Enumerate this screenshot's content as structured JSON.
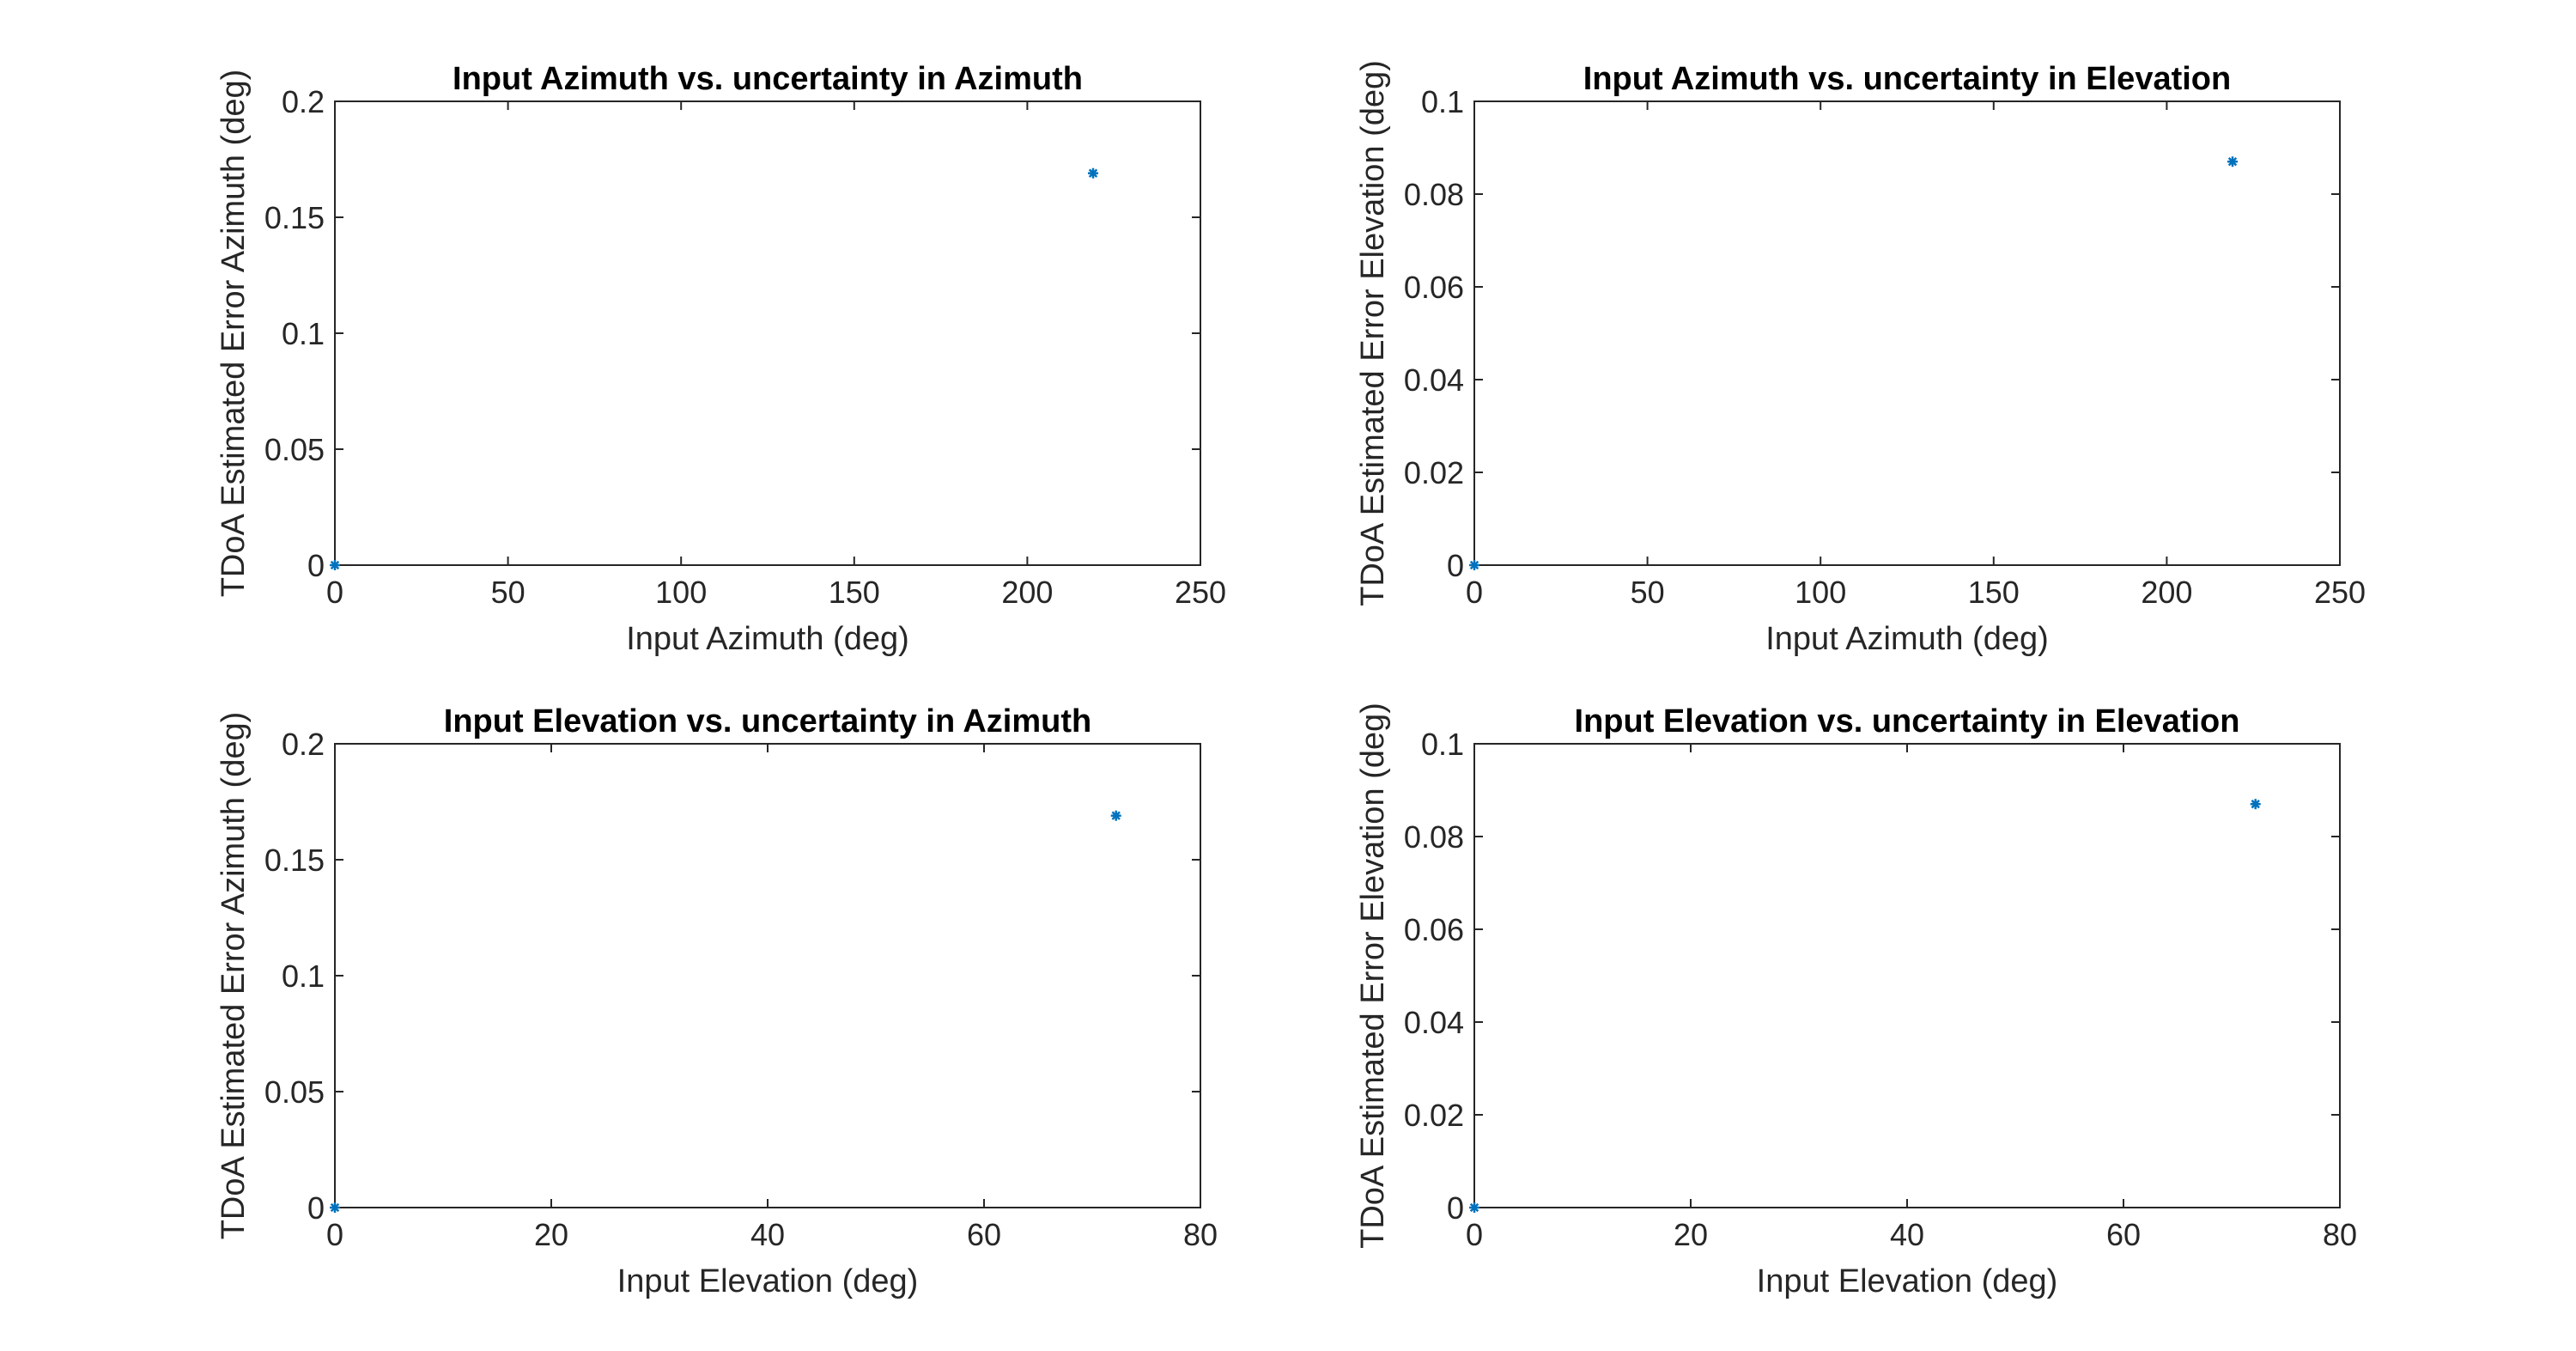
{
  "chart_data": [
    {
      "type": "scatter",
      "title": "Input Azimuth vs. uncertainty in Azimuth",
      "xlabel": "Input Azimuth (deg)",
      "ylabel": "TDoA Estimated Error Azimuth (deg)",
      "xlim": [
        0,
        250
      ],
      "ylim": [
        0,
        0.2
      ],
      "xticks": [
        0,
        50,
        100,
        150,
        200,
        250
      ],
      "yticks": [
        0,
        0.05,
        0.1,
        0.15,
        0.2
      ],
      "xtick_labels": [
        "0",
        "50",
        "100",
        "150",
        "200",
        "250"
      ],
      "ytick_labels": [
        "0",
        "0.05",
        "0.1",
        "0.15",
        "0.2"
      ],
      "grid": false,
      "marker": "asterisk",
      "color": "#0072BD",
      "x": [
        0,
        219
      ],
      "y": [
        0,
        0.169
      ]
    },
    {
      "type": "scatter",
      "title": "Input Azimuth vs. uncertainty in Elevation",
      "xlabel": "Input Azimuth (deg)",
      "ylabel": "TDoA Estimated Error Elevation (deg)",
      "xlim": [
        0,
        250
      ],
      "ylim": [
        0,
        0.1
      ],
      "xticks": [
        0,
        50,
        100,
        150,
        200,
        250
      ],
      "yticks": [
        0,
        0.02,
        0.04,
        0.06,
        0.08,
        0.1
      ],
      "xtick_labels": [
        "0",
        "50",
        "100",
        "150",
        "200",
        "250"
      ],
      "ytick_labels": [
        "0",
        "0.02",
        "0.04",
        "0.06",
        "0.08",
        "0.1"
      ],
      "grid": false,
      "marker": "asterisk",
      "color": "#0072BD",
      "x": [
        0,
        219
      ],
      "y": [
        0,
        0.087
      ]
    },
    {
      "type": "scatter",
      "title": "Input Elevation vs. uncertainty in Azimuth",
      "xlabel": "Input Elevation (deg)",
      "ylabel": "TDoA Estimated Error Azimuth (deg)",
      "xlim": [
        0,
        80
      ],
      "ylim": [
        0,
        0.2
      ],
      "xticks": [
        0,
        20,
        40,
        60,
        80
      ],
      "yticks": [
        0,
        0.05,
        0.1,
        0.15,
        0.2
      ],
      "xtick_labels": [
        "0",
        "20",
        "40",
        "60",
        "80"
      ],
      "ytick_labels": [
        "0",
        "0.05",
        "0.1",
        "0.15",
        "0.2"
      ],
      "grid": false,
      "marker": "asterisk",
      "color": "#0072BD",
      "x": [
        0,
        72.2
      ],
      "y": [
        0,
        0.169
      ]
    },
    {
      "type": "scatter",
      "title": "Input Elevation vs. uncertainty in Elevation",
      "xlabel": "Input Elevation (deg)",
      "ylabel": "TDoA Estimated Error Elevation (deg)",
      "xlim": [
        0,
        80
      ],
      "ylim": [
        0,
        0.1
      ],
      "xticks": [
        0,
        20,
        40,
        60,
        80
      ],
      "yticks": [
        0,
        0.02,
        0.04,
        0.06,
        0.08,
        0.1
      ],
      "xtick_labels": [
        "0",
        "20",
        "40",
        "60",
        "80"
      ],
      "ytick_labels": [
        "0",
        "0.02",
        "0.04",
        "0.06",
        "0.08",
        "0.1"
      ],
      "grid": false,
      "marker": "asterisk",
      "color": "#0072BD",
      "x": [
        0,
        72.2
      ],
      "y": [
        0,
        0.087
      ]
    }
  ]
}
